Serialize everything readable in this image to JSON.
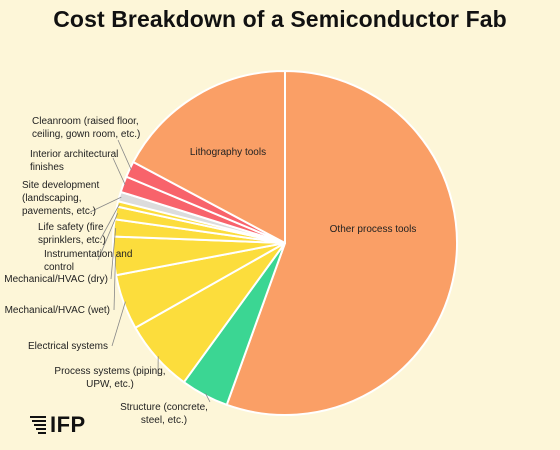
{
  "chart_data": {
    "type": "pie",
    "title": "Cost Breakdown of a Semiconductor Fab",
    "slices": [
      {
        "label": "Other process tools",
        "value": 55.5,
        "color": "#fa9f66"
      },
      {
        "label": "Structure (concrete, steel, etc.)",
        "value": 4.5,
        "color": "#3bd693"
      },
      {
        "label": "Process systems (piping, UPW, etc.)",
        "value": 6.8,
        "color": "#fcdd3c"
      },
      {
        "label": "Electrical systems",
        "value": 5.2,
        "color": "#fcdd3c"
      },
      {
        "label": "Mechanical/HVAC (wet)",
        "value": 3.6,
        "color": "#fcdd3c"
      },
      {
        "label": "Mechanical/HVAC (dry)",
        "value": 1.6,
        "color": "#fcdd3c"
      },
      {
        "label": "Instrumentation and control",
        "value": 1.2,
        "color": "#fcdd3c"
      },
      {
        "label": "Life safety (fire sprinklers, etc.)",
        "value": 0.5,
        "color": "#fcdd3c"
      },
      {
        "label": "Site development (landscaping, pavements, etc.)",
        "value": 0.9,
        "color": "#dcdcdc"
      },
      {
        "label": "Interior architectural finishes",
        "value": 1.5,
        "color": "#f8636b"
      },
      {
        "label": "Cleanroom (raised floor, ceiling, gown room, etc.)",
        "value": 1.5,
        "color": "#f8636b"
      },
      {
        "label": "Lithography tools",
        "value": 17.2,
        "color": "#fa9f66"
      }
    ]
  },
  "brand": {
    "name": "IFP"
  }
}
